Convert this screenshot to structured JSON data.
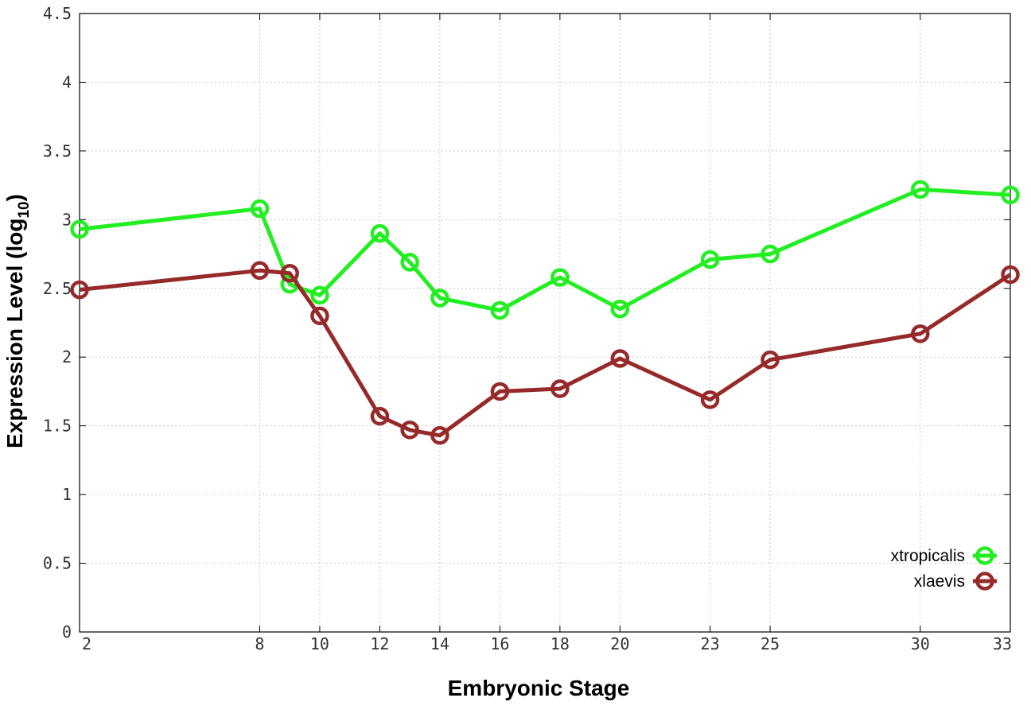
{
  "chart_data": {
    "type": "line",
    "xlabel": "Embryonic Stage",
    "ylabel_main": "Expression Level (log",
    "ylabel_sub": "10",
    "ylabel_close": ")",
    "x_ticks": [
      2,
      8,
      10,
      12,
      14,
      16,
      18,
      20,
      23,
      25,
      30,
      33
    ],
    "y_ticks": [
      0,
      0.5,
      1,
      1.5,
      2,
      2.5,
      3,
      3.5,
      4,
      4.5
    ],
    "y_tick_labels": [
      "0",
      "0.5",
      "1",
      "1.5",
      "2",
      "2.5",
      "3",
      "3.5",
      "4",
      "4.5"
    ],
    "xlim": [
      2,
      33
    ],
    "ylim": [
      0,
      4.5
    ],
    "grid": true,
    "legend_position": "bottom-right",
    "series": [
      {
        "name": "xtropicalis",
        "color": "#22ee22",
        "x": [
          2,
          8,
          9,
          10,
          12,
          13,
          14,
          16,
          18,
          20,
          23,
          25,
          30,
          33
        ],
        "y": [
          2.93,
          3.08,
          2.53,
          2.45,
          2.9,
          2.69,
          2.43,
          2.34,
          2.58,
          2.35,
          2.71,
          2.75,
          3.22,
          3.18
        ]
      },
      {
        "name": "xlaevis",
        "color": "#962a2a",
        "x": [
          2,
          8,
          9,
          10,
          12,
          13,
          14,
          16,
          18,
          20,
          23,
          25,
          30,
          33
        ],
        "y": [
          2.49,
          2.63,
          2.61,
          2.3,
          1.57,
          1.47,
          1.43,
          1.75,
          1.77,
          1.99,
          1.69,
          1.98,
          2.17,
          2.6
        ]
      }
    ]
  }
}
